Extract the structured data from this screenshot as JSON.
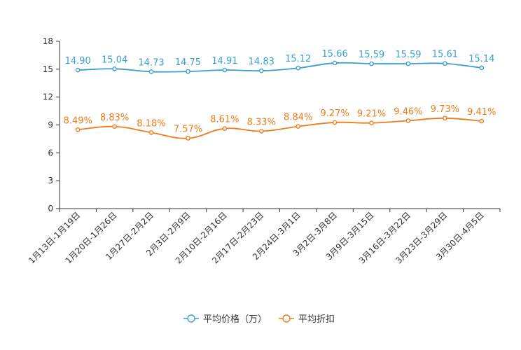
{
  "chart_data": {
    "type": "line",
    "title": "",
    "xlabel": "",
    "ylabel": "",
    "ylim": [
      0,
      18
    ],
    "yticks": [
      0,
      3,
      6,
      9,
      12,
      15,
      18
    ],
    "grid": false,
    "legend_position": "bottom-center",
    "categories": [
      "1月13日-1月19日",
      "1月20日-1月26日",
      "1月27日-2月2日",
      "2月3日-2月9日",
      "2月10日-2月16日",
      "2月17日-2月23日",
      "2月24日-3月1日",
      "3月2日-3月8日",
      "3月9日-3月15日",
      "3月16日-3月22日",
      "3月23日-3月29日",
      "3月30日-4月5日"
    ],
    "series": [
      {
        "name": "平均价格（万）",
        "color": "#3a9fd0",
        "values": [
          14.9,
          15.04,
          14.73,
          14.75,
          14.91,
          14.83,
          15.12,
          15.66,
          15.59,
          15.59,
          15.61,
          15.14
        ],
        "labels": [
          "14.90",
          "15.04",
          "14.73",
          "14.75",
          "14.91",
          "14.83",
          "15.12",
          "15.66",
          "15.59",
          "15.59",
          "15.61",
          "15.14"
        ]
      },
      {
        "name": "平均折扣",
        "color": "#f07c1a",
        "values": [
          8.49,
          8.83,
          8.18,
          7.57,
          8.61,
          8.33,
          8.84,
          9.27,
          9.21,
          9.46,
          9.73,
          9.41
        ],
        "labels": [
          "8.49%",
          "8.83%",
          "8.18%",
          "7.57%",
          "8.61%",
          "8.33%",
          "8.84%",
          "9.27%",
          "9.21%",
          "9.46%",
          "9.73%",
          "9.41%"
        ]
      }
    ]
  }
}
